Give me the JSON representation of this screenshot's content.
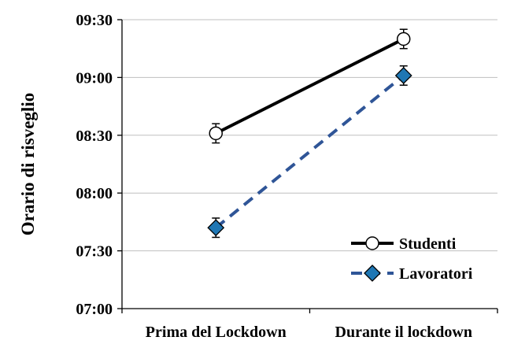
{
  "chart_data": {
    "type": "line",
    "title": "",
    "xlabel": "",
    "ylabel": "Orario di risveglio",
    "categories": [
      "Prima del Lockdown",
      "Durante il lockdown"
    ],
    "y_ticks": [
      "07:00",
      "07:30",
      "08:00",
      "08:30",
      "09:00",
      "09:30"
    ],
    "ylim_minutes": [
      420,
      570
    ],
    "y_tick_step_minutes": 30,
    "grid": "horizontal",
    "legend_position": "bottom-right",
    "series": [
      {
        "name": "Studenti",
        "values_minutes": [
          511,
          560
        ],
        "values": [
          "08:31",
          "09:20"
        ],
        "error_minutes": 5,
        "marker": "circle",
        "marker_fill": "#ffffff",
        "line_color": "#000000",
        "line_style": "solid"
      },
      {
        "name": "Lavoratori",
        "values_minutes": [
          462,
          541
        ],
        "values": [
          "07:42",
          "09:01"
        ],
        "error_minutes": 5,
        "marker": "diamond",
        "marker_fill": "#1f77b4",
        "line_color": "#2f5597",
        "line_style": "dashed"
      }
    ]
  }
}
